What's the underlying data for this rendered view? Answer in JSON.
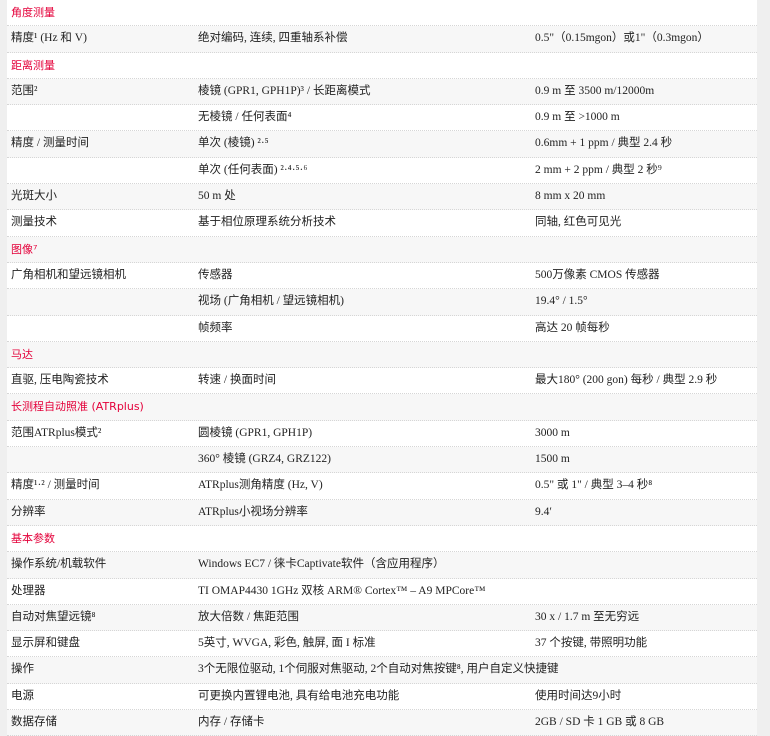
{
  "accent_color": "#e4003a",
  "rows": [
    {
      "type": "section",
      "c1": "角度测量"
    },
    {
      "type": "data",
      "c1": "精度¹ (Hz 和 V)",
      "c2": "绝对编码, 连续, 四重轴系补偿",
      "c3": "0.5\"（0.15mgon）或1\"（0.3mgon）"
    },
    {
      "type": "section",
      "c1": "距离测量"
    },
    {
      "type": "data",
      "c1": "范围²",
      "c2": "棱镜 (GPR1, GPH1P)³ / 长距离模式",
      "c3": "0.9 m 至 3500 m/12000m"
    },
    {
      "type": "data",
      "c1": "",
      "c2": "无棱镜 / 任何表面⁴",
      "c3": "0.9 m 至 >1000 m"
    },
    {
      "type": "data",
      "c1": "精度 / 测量时间",
      "c2": "单次 (棱镜) ²·⁵",
      "c3": "0.6mm + 1 ppm / 典型 2.4 秒"
    },
    {
      "type": "data",
      "c1": "",
      "c2": "单次 (任何表面) ²·⁴·⁵·⁶",
      "c3": "2 mm + 2 ppm / 典型 2 秒⁹"
    },
    {
      "type": "data",
      "c1": "光斑大小",
      "c2": "50 m 处",
      "c3": "8 mm x 20 mm"
    },
    {
      "type": "data",
      "c1": "测量技术",
      "c2": "基于相位原理系统分析技术",
      "c3": "同轴, 红色可见光"
    },
    {
      "type": "section",
      "c1": "图像⁷"
    },
    {
      "type": "data",
      "c1": "广角相机和望远镜相机",
      "c2": "传感器",
      "c3": "500万像素 CMOS 传感器"
    },
    {
      "type": "data",
      "c1": "",
      "c2": "视场 (广角相机 / 望远镜相机)",
      "c3": "19.4°  / 1.5°"
    },
    {
      "type": "data",
      "c1": "",
      "c2": "帧频率",
      "c3": "高达 20 帧每秒"
    },
    {
      "type": "section",
      "c1": "马达"
    },
    {
      "type": "data",
      "c1": "直驱, 压电陶瓷技术",
      "c2": "转速 / 换面时间",
      "c3": "最大180° (200 gon) 每秒 / 典型 2.9 秒"
    },
    {
      "type": "section",
      "c1": "长测程自动照准 (ATRplus)"
    },
    {
      "type": "data",
      "c1": "范围ATRplus模式²",
      "c2": "圆棱镜 (GPR1, GPH1P)",
      "c3": "3000 m"
    },
    {
      "type": "data",
      "c1": "",
      "c2": "360° 棱镜 (GRZ4, GRZ122)",
      "c3": "1500 m"
    },
    {
      "type": "data",
      "c1": "精度¹·² / 测量时间",
      "c2": "ATRplus测角精度 (Hz, V)",
      "c3": "0.5\" 或 1\" / 典型 3–4 秒⁸"
    },
    {
      "type": "data",
      "c1": "分辨率",
      "c2": "ATRplus小视场分辨率",
      "c3": "9.4′"
    },
    {
      "type": "section",
      "c1": "基本参数"
    },
    {
      "type": "data",
      "c1": "操作系统/机载软件",
      "c2": "Windows EC7 / 徕卡Captivate软件（含应用程序）",
      "c3": ""
    },
    {
      "type": "data",
      "c1": "处理器",
      "c2": "TI OMAP4430 1GHz 双核 ARM® Cortex™ – A9 MPCore™",
      "c3": ""
    },
    {
      "type": "data",
      "c1": "自动对焦望远镜⁸",
      "c2": "放大倍数 / 焦距范围",
      "c3": "30 x / 1.7 m 至无穷远"
    },
    {
      "type": "data",
      "c1": "显示屏和键盘",
      "c2": "5英寸, WVGA, 彩色, 触屏, 面 I 标准",
      "c3": "37 个按键, 带照明功能"
    },
    {
      "type": "data",
      "c1": "操作",
      "c2": "3个无限位驱动, 1个伺服对焦驱动, 2个自动对焦按键⁸, 用户自定义快捷键",
      "c3": ""
    },
    {
      "type": "data",
      "c1": "电源",
      "c2": "可更换内置锂电池, 具有给电池充电功能",
      "c3": "使用时间达9小时"
    },
    {
      "type": "data",
      "c1": "数据存储",
      "c2": "内存 / 存储卡",
      "c3": "2GB / SD 卡 1 GB 或 8 GB"
    }
  ]
}
